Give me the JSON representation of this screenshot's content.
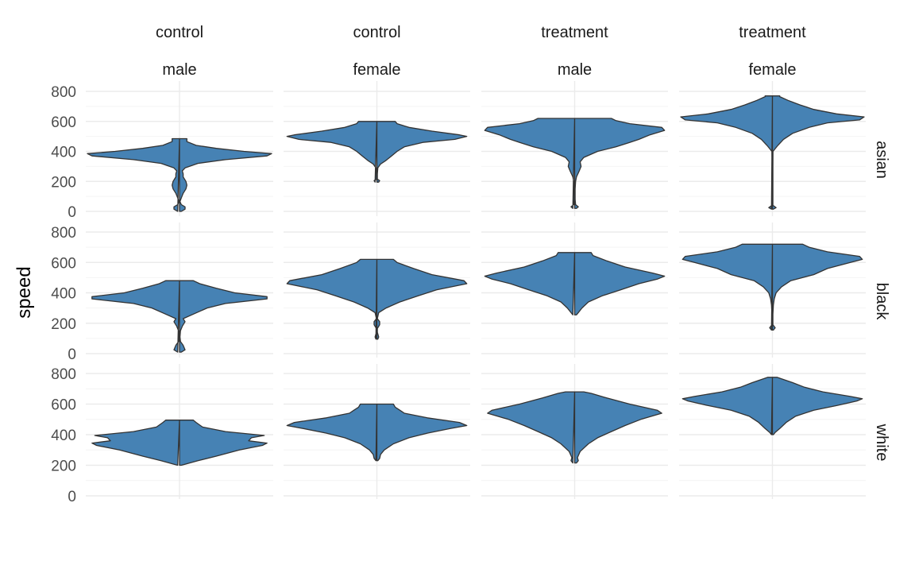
{
  "chart_data": {
    "type": "violin",
    "ylabel": "speed",
    "xlabel": "",
    "ylim": [
      0,
      800
    ],
    "y_ticks": [
      0,
      200,
      400,
      600,
      800
    ],
    "grid": true,
    "fill_color": "#4682B4",
    "outline_color": "#333333",
    "columns": [
      {
        "condition": "control",
        "sex": "male"
      },
      {
        "condition": "control",
        "sex": "female"
      },
      {
        "condition": "treatment",
        "sex": "male"
      },
      {
        "condition": "treatment",
        "sex": "female"
      }
    ],
    "rows": [
      "asian",
      "black",
      "white"
    ],
    "panels": [
      {
        "row": "asian",
        "col": 0,
        "min": 0,
        "max": 485,
        "profile": [
          [
            0,
            0.02
          ],
          [
            15,
            0.06
          ],
          [
            30,
            0.06
          ],
          [
            45,
            0.02
          ],
          [
            65,
            0.005
          ],
          [
            90,
            0.02
          ],
          [
            120,
            0.04
          ],
          [
            150,
            0.07
          ],
          [
            175,
            0.08
          ],
          [
            200,
            0.07
          ],
          [
            230,
            0.04
          ],
          [
            250,
            0.04
          ],
          [
            270,
            0.03
          ],
          [
            290,
            0.06
          ],
          [
            320,
            0.2
          ],
          [
            345,
            0.5
          ],
          [
            370,
            0.95
          ],
          [
            385,
            1.0
          ],
          [
            400,
            0.7
          ],
          [
            420,
            0.4
          ],
          [
            440,
            0.18
          ],
          [
            465,
            0.08
          ],
          [
            485,
            0.08
          ]
        ]
      },
      {
        "row": "asian",
        "col": 1,
        "min": 195,
        "max": 600,
        "profile": [
          [
            195,
            0.02
          ],
          [
            205,
            0.03
          ],
          [
            215,
            0.005
          ],
          [
            250,
            0.005
          ],
          [
            290,
            0.01
          ],
          [
            315,
            0.04
          ],
          [
            340,
            0.1
          ],
          [
            370,
            0.16
          ],
          [
            400,
            0.22
          ],
          [
            430,
            0.3
          ],
          [
            460,
            0.5
          ],
          [
            480,
            0.85
          ],
          [
            500,
            0.98
          ],
          [
            510,
            0.9
          ],
          [
            535,
            0.6
          ],
          [
            560,
            0.35
          ],
          [
            585,
            0.22
          ],
          [
            600,
            0.2
          ]
        ]
      },
      {
        "row": "asian",
        "col": 2,
        "min": 20,
        "max": 620,
        "profile": [
          [
            20,
            0.02
          ],
          [
            30,
            0.04
          ],
          [
            45,
            0.01
          ],
          [
            80,
            0.005
          ],
          [
            150,
            0.005
          ],
          [
            200,
            0.01
          ],
          [
            230,
            0.02
          ],
          [
            270,
            0.05
          ],
          [
            300,
            0.07
          ],
          [
            330,
            0.06
          ],
          [
            360,
            0.1
          ],
          [
            400,
            0.25
          ],
          [
            430,
            0.45
          ],
          [
            460,
            0.6
          ],
          [
            480,
            0.7
          ],
          [
            510,
            0.82
          ],
          [
            540,
            0.98
          ],
          [
            560,
            0.95
          ],
          [
            585,
            0.6
          ],
          [
            605,
            0.45
          ],
          [
            620,
            0.4
          ]
        ]
      },
      {
        "row": "asian",
        "col": 3,
        "min": 15,
        "max": 770,
        "profile": [
          [
            15,
            0.01
          ],
          [
            25,
            0.04
          ],
          [
            40,
            0.004
          ],
          [
            100,
            0.004
          ],
          [
            200,
            0.004
          ],
          [
            300,
            0.004
          ],
          [
            400,
            0.006
          ],
          [
            440,
            0.06
          ],
          [
            480,
            0.12
          ],
          [
            520,
            0.22
          ],
          [
            560,
            0.4
          ],
          [
            590,
            0.6
          ],
          [
            610,
            0.95
          ],
          [
            630,
            1.0
          ],
          [
            650,
            0.7
          ],
          [
            680,
            0.45
          ],
          [
            710,
            0.3
          ],
          [
            740,
            0.17
          ],
          [
            765,
            0.08
          ],
          [
            770,
            0.08
          ]
        ]
      },
      {
        "row": "black",
        "col": 0,
        "min": 10,
        "max": 480,
        "profile": [
          [
            10,
            0.02
          ],
          [
            25,
            0.06
          ],
          [
            55,
            0.04
          ],
          [
            80,
            0.01
          ],
          [
            110,
            0.005
          ],
          [
            150,
            0.01
          ],
          [
            180,
            0.03
          ],
          [
            210,
            0.06
          ],
          [
            230,
            0.04
          ],
          [
            260,
            0.15
          ],
          [
            300,
            0.3
          ],
          [
            330,
            0.5
          ],
          [
            360,
            0.95
          ],
          [
            375,
            0.95
          ],
          [
            400,
            0.6
          ],
          [
            430,
            0.4
          ],
          [
            460,
            0.22
          ],
          [
            480,
            0.15
          ]
        ]
      },
      {
        "row": "black",
        "col": 1,
        "min": 95,
        "max": 620,
        "profile": [
          [
            95,
            0.01
          ],
          [
            110,
            0.02
          ],
          [
            140,
            0.005
          ],
          [
            165,
            0.005
          ],
          [
            190,
            0.03
          ],
          [
            210,
            0.03
          ],
          [
            230,
            0.005
          ],
          [
            270,
            0.02
          ],
          [
            300,
            0.1
          ],
          [
            340,
            0.25
          ],
          [
            380,
            0.45
          ],
          [
            420,
            0.65
          ],
          [
            460,
            0.98
          ],
          [
            480,
            0.95
          ],
          [
            520,
            0.6
          ],
          [
            560,
            0.4
          ],
          [
            600,
            0.22
          ],
          [
            620,
            0.18
          ]
        ]
      },
      {
        "row": "black",
        "col": 2,
        "min": 255,
        "max": 665,
        "profile": [
          [
            255,
            0.02
          ],
          [
            270,
            0.04
          ],
          [
            300,
            0.08
          ],
          [
            340,
            0.15
          ],
          [
            380,
            0.3
          ],
          [
            420,
            0.5
          ],
          [
            460,
            0.7
          ],
          [
            490,
            0.9
          ],
          [
            510,
            0.98
          ],
          [
            530,
            0.85
          ],
          [
            570,
            0.55
          ],
          [
            610,
            0.35
          ],
          [
            645,
            0.2
          ],
          [
            665,
            0.18
          ]
        ]
      },
      {
        "row": "black",
        "col": 3,
        "min": 155,
        "max": 720,
        "profile": [
          [
            155,
            0.01
          ],
          [
            170,
            0.03
          ],
          [
            190,
            0.005
          ],
          [
            260,
            0.005
          ],
          [
            320,
            0.01
          ],
          [
            360,
            0.02
          ],
          [
            400,
            0.04
          ],
          [
            440,
            0.1
          ],
          [
            480,
            0.2
          ],
          [
            520,
            0.45
          ],
          [
            560,
            0.6
          ],
          [
            600,
            0.85
          ],
          [
            620,
            0.98
          ],
          [
            640,
            0.95
          ],
          [
            670,
            0.6
          ],
          [
            700,
            0.4
          ],
          [
            720,
            0.33
          ]
        ]
      },
      {
        "row": "white",
        "col": 0,
        "min": 200,
        "max": 495,
        "profile": [
          [
            200,
            0.02
          ],
          [
            230,
            0.2
          ],
          [
            260,
            0.4
          ],
          [
            300,
            0.65
          ],
          [
            330,
            0.9
          ],
          [
            345,
            0.95
          ],
          [
            360,
            0.75
          ],
          [
            380,
            0.78
          ],
          [
            395,
            0.92
          ],
          [
            420,
            0.5
          ],
          [
            450,
            0.25
          ],
          [
            480,
            0.18
          ],
          [
            495,
            0.15
          ]
        ]
      },
      {
        "row": "white",
        "col": 1,
        "min": 230,
        "max": 600,
        "profile": [
          [
            230,
            0.01
          ],
          [
            245,
            0.03
          ],
          [
            270,
            0.04
          ],
          [
            300,
            0.08
          ],
          [
            340,
            0.18
          ],
          [
            380,
            0.35
          ],
          [
            410,
            0.55
          ],
          [
            440,
            0.8
          ],
          [
            460,
            0.98
          ],
          [
            480,
            0.9
          ],
          [
            510,
            0.55
          ],
          [
            540,
            0.3
          ],
          [
            560,
            0.25
          ],
          [
            580,
            0.2
          ],
          [
            600,
            0.18
          ]
        ]
      },
      {
        "row": "white",
        "col": 2,
        "min": 215,
        "max": 680,
        "profile": [
          [
            215,
            0.02
          ],
          [
            230,
            0.04
          ],
          [
            250,
            0.03
          ],
          [
            290,
            0.06
          ],
          [
            340,
            0.15
          ],
          [
            380,
            0.25
          ],
          [
            420,
            0.4
          ],
          [
            460,
            0.55
          ],
          [
            500,
            0.72
          ],
          [
            540,
            0.95
          ],
          [
            560,
            0.9
          ],
          [
            600,
            0.6
          ],
          [
            640,
            0.35
          ],
          [
            670,
            0.18
          ],
          [
            680,
            0.1
          ]
        ]
      },
      {
        "row": "white",
        "col": 3,
        "min": 400,
        "max": 775,
        "profile": [
          [
            400,
            0.01
          ],
          [
            415,
            0.03
          ],
          [
            440,
            0.08
          ],
          [
            480,
            0.15
          ],
          [
            520,
            0.25
          ],
          [
            560,
            0.45
          ],
          [
            590,
            0.7
          ],
          [
            620,
            0.92
          ],
          [
            635,
            0.98
          ],
          [
            650,
            0.85
          ],
          [
            680,
            0.55
          ],
          [
            710,
            0.35
          ],
          [
            740,
            0.22
          ],
          [
            765,
            0.1
          ],
          [
            775,
            0.05
          ]
        ]
      }
    ]
  }
}
